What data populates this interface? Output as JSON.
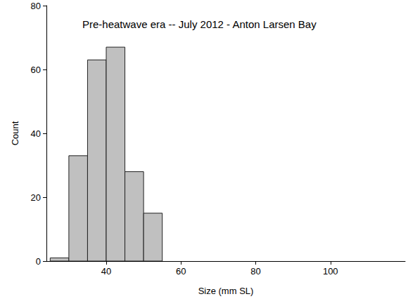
{
  "chart_data": {
    "type": "histogram",
    "title": "Pre-heatwave era -- July 2012 - Anton Larsen Bay",
    "x_label": "Size (mm SL)",
    "y_label": "Count",
    "bins": [
      25,
      30,
      35,
      40,
      45,
      50,
      55
    ],
    "counts": [
      1,
      33,
      63,
      67,
      28,
      15
    ],
    "color": "#c0c0c0",
    "xlim": [
      24,
      120
    ],
    "xticks": [
      40,
      60,
      80,
      100
    ],
    "ylim": [
      0,
      80
    ],
    "yticks": [
      0,
      20,
      40,
      60,
      80
    ],
    "grid": false
  }
}
